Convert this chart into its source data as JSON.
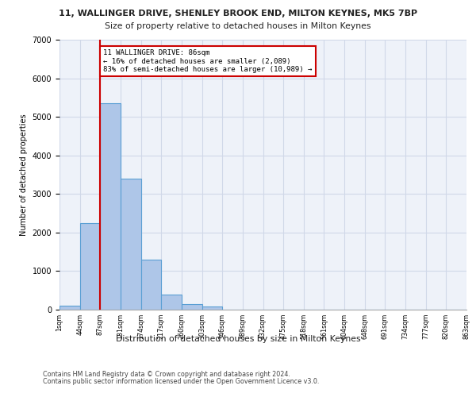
{
  "title1": "11, WALLINGER DRIVE, SHENLEY BROOK END, MILTON KEYNES, MK5 7BP",
  "title2": "Size of property relative to detached houses in Milton Keynes",
  "xlabel": "Distribution of detached houses by size in Milton Keynes",
  "ylabel": "Number of detached properties",
  "bar_values": [
    100,
    2250,
    5350,
    3400,
    1300,
    400,
    150,
    90,
    0,
    0,
    0,
    0,
    0,
    0,
    0,
    0,
    0,
    0,
    0,
    0
  ],
  "bin_labels": [
    "1sqm",
    "44sqm",
    "87sqm",
    "131sqm",
    "174sqm",
    "217sqm",
    "260sqm",
    "303sqm",
    "346sqm",
    "389sqm",
    "432sqm",
    "475sqm",
    "518sqm",
    "561sqm",
    "604sqm",
    "648sqm",
    "691sqm",
    "734sqm",
    "777sqm",
    "820sqm",
    "863sqm"
  ],
  "bar_color": "#aec6e8",
  "bar_edgecolor": "#5a9fd4",
  "grid_color": "#d0d8e8",
  "background_color": "#eef2f9",
  "vline_color": "#cc0000",
  "annotation_text": "11 WALLINGER DRIVE: 86sqm\n← 16% of detached houses are smaller (2,089)\n83% of semi-detached houses are larger (10,989) →",
  "annotation_box_color": "#ffffff",
  "annotation_box_edgecolor": "#cc0000",
  "footer1": "Contains HM Land Registry data © Crown copyright and database right 2024.",
  "footer2": "Contains public sector information licensed under the Open Government Licence v3.0.",
  "ylim": [
    0,
    7000
  ],
  "yticks": [
    0,
    1000,
    2000,
    3000,
    4000,
    5000,
    6000,
    7000
  ]
}
